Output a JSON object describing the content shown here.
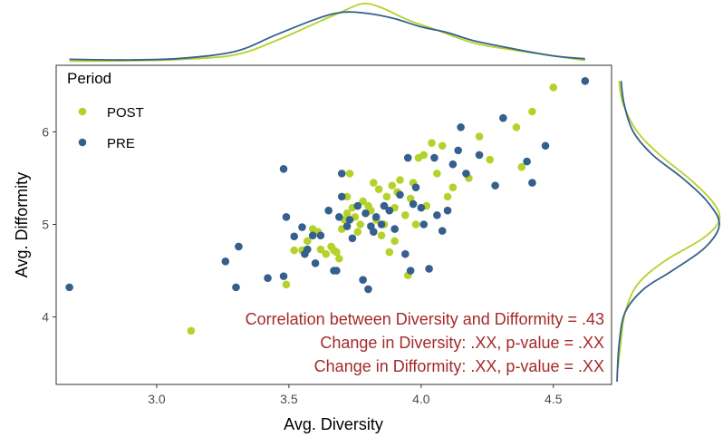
{
  "chart_data": {
    "type": "scatter",
    "xlabel": "Avg. Diversity",
    "ylabel": "Avg. Difformity",
    "xlim": [
      2.62,
      4.72
    ],
    "ylim": [
      3.27,
      6.72
    ],
    "x_ticks": [
      "3.0",
      "3.5",
      "4.0",
      "4.5"
    ],
    "x_tick_values": [
      3.0,
      3.5,
      4.0,
      4.5
    ],
    "y_ticks": [
      "4",
      "5",
      "6"
    ],
    "y_tick_values": [
      4,
      5,
      6
    ],
    "legend": {
      "title": "Period",
      "placement": "top-left",
      "entries": [
        {
          "label": "POST",
          "color": "#b5d22a"
        },
        {
          "label": "PRE",
          "color": "#355f8d"
        }
      ]
    },
    "annotations": [
      "Correlation between Diversity and Difformity = .43",
      "Change in Diversity: .XX, p-value = .XX",
      "Change in Difformity: .XX, p-value = .XX"
    ],
    "series": [
      {
        "name": "POST",
        "color": "#b5d22a",
        "points": [
          [
            3.13,
            3.85
          ],
          [
            3.49,
            4.35
          ],
          [
            3.52,
            4.72
          ],
          [
            3.55,
            4.72
          ],
          [
            3.57,
            4.82
          ],
          [
            3.59,
            4.95
          ],
          [
            3.61,
            4.92
          ],
          [
            3.62,
            4.73
          ],
          [
            3.64,
            4.68
          ],
          [
            3.66,
            4.76
          ],
          [
            3.67,
            4.72
          ],
          [
            3.68,
            4.7
          ],
          [
            3.69,
            4.63
          ],
          [
            3.7,
            4.95
          ],
          [
            3.71,
            5.05
          ],
          [
            3.72,
            5.12
          ],
          [
            3.72,
            5.3
          ],
          [
            3.73,
            5.55
          ],
          [
            3.74,
            5.18
          ],
          [
            3.75,
            5.08
          ],
          [
            3.76,
            4.92
          ],
          [
            3.77,
            5.0
          ],
          [
            3.78,
            5.25
          ],
          [
            3.79,
            5.12
          ],
          [
            3.8,
            5.2
          ],
          [
            3.81,
            5.15
          ],
          [
            3.82,
            5.45
          ],
          [
            3.83,
            5.05
          ],
          [
            3.84,
            5.38
          ],
          [
            3.85,
            4.88
          ],
          [
            3.86,
            5.0
          ],
          [
            3.87,
            5.3
          ],
          [
            3.88,
            4.7
          ],
          [
            3.89,
            5.42
          ],
          [
            3.9,
            4.82
          ],
          [
            3.9,
            5.18
          ],
          [
            3.91,
            5.35
          ],
          [
            3.92,
            5.48
          ],
          [
            3.94,
            5.1
          ],
          [
            3.95,
            4.45
          ],
          [
            3.96,
            5.28
          ],
          [
            3.97,
            5.45
          ],
          [
            3.98,
            5.0
          ],
          [
            3.99,
            5.72
          ],
          [
            4.01,
            5.75
          ],
          [
            4.02,
            5.2
          ],
          [
            4.04,
            5.88
          ],
          [
            4.06,
            5.55
          ],
          [
            4.08,
            5.85
          ],
          [
            4.1,
            5.3
          ],
          [
            4.12,
            5.4
          ],
          [
            4.18,
            5.5
          ],
          [
            4.22,
            5.95
          ],
          [
            4.26,
            5.7
          ],
          [
            4.36,
            6.05
          ],
          [
            4.38,
            5.62
          ],
          [
            4.42,
            6.22
          ],
          [
            4.5,
            6.48
          ]
        ]
      },
      {
        "name": "PRE",
        "color": "#355f8d",
        "points": [
          [
            2.67,
            4.32
          ],
          [
            3.26,
            4.6
          ],
          [
            3.3,
            4.32
          ],
          [
            3.31,
            4.76
          ],
          [
            3.42,
            4.42
          ],
          [
            3.48,
            4.44
          ],
          [
            3.48,
            5.6
          ],
          [
            3.49,
            5.08
          ],
          [
            3.52,
            4.87
          ],
          [
            3.55,
            4.97
          ],
          [
            3.56,
            4.68
          ],
          [
            3.57,
            4.73
          ],
          [
            3.59,
            4.88
          ],
          [
            3.6,
            4.58
          ],
          [
            3.62,
            4.88
          ],
          [
            3.65,
            5.15
          ],
          [
            3.67,
            4.5
          ],
          [
            3.68,
            4.5
          ],
          [
            3.69,
            5.08
          ],
          [
            3.7,
            5.3
          ],
          [
            3.7,
            5.55
          ],
          [
            3.72,
            4.98
          ],
          [
            3.73,
            5.05
          ],
          [
            3.74,
            4.85
          ],
          [
            3.76,
            5.2
          ],
          [
            3.78,
            4.4
          ],
          [
            3.79,
            5.12
          ],
          [
            3.8,
            4.3
          ],
          [
            3.81,
            4.98
          ],
          [
            3.82,
            4.92
          ],
          [
            3.83,
            5.08
          ],
          [
            3.85,
            5.0
          ],
          [
            3.86,
            5.2
          ],
          [
            3.88,
            5.15
          ],
          [
            3.9,
            4.95
          ],
          [
            3.92,
            5.32
          ],
          [
            3.94,
            4.68
          ],
          [
            3.95,
            5.72
          ],
          [
            3.96,
            4.5
          ],
          [
            3.97,
            5.22
          ],
          [
            3.98,
            5.4
          ],
          [
            4.0,
            5.18
          ],
          [
            4.01,
            5.0
          ],
          [
            4.03,
            4.52
          ],
          [
            4.05,
            5.72
          ],
          [
            4.06,
            5.1
          ],
          [
            4.08,
            4.93
          ],
          [
            4.1,
            5.15
          ],
          [
            4.12,
            5.65
          ],
          [
            4.14,
            5.8
          ],
          [
            4.15,
            6.05
          ],
          [
            4.17,
            5.55
          ],
          [
            4.22,
            5.75
          ],
          [
            4.28,
            5.42
          ],
          [
            4.31,
            6.15
          ],
          [
            4.4,
            5.68
          ],
          [
            4.42,
            5.45
          ],
          [
            4.47,
            5.85
          ],
          [
            4.62,
            6.55
          ]
        ]
      }
    ],
    "marginal_density": {
      "top": {
        "axis": "x",
        "series": [
          {
            "name": "POST",
            "color": "#b5d22a",
            "points": [
              [
                2.67,
                0.01
              ],
              [
                2.9,
                0.015
              ],
              [
                3.1,
                0.04
              ],
              [
                3.3,
                0.12
              ],
              [
                3.45,
                0.36
              ],
              [
                3.6,
                0.66
              ],
              [
                3.7,
                0.86
              ],
              [
                3.78,
                1.0
              ],
              [
                3.85,
                0.93
              ],
              [
                3.95,
                0.72
              ],
              [
                4.05,
                0.56
              ],
              [
                4.2,
                0.32
              ],
              [
                4.35,
                0.2
              ],
              [
                4.5,
                0.1
              ],
              [
                4.62,
                0.02
              ]
            ]
          },
          {
            "name": "PRE",
            "color": "#355f8d",
            "points": [
              [
                2.67,
                0.04
              ],
              [
                2.9,
                0.03
              ],
              [
                3.1,
                0.06
              ],
              [
                3.3,
                0.18
              ],
              [
                3.45,
                0.46
              ],
              [
                3.6,
                0.73
              ],
              [
                3.7,
                0.85
              ],
              [
                3.8,
                0.83
              ],
              [
                3.9,
                0.74
              ],
              [
                4.0,
                0.6
              ],
              [
                4.1,
                0.5
              ],
              [
                4.2,
                0.36
              ],
              [
                4.35,
                0.22
              ],
              [
                4.5,
                0.1
              ],
              [
                4.62,
                0.05
              ]
            ]
          }
        ]
      },
      "right": {
        "axis": "y",
        "series": [
          {
            "name": "POST",
            "color": "#b5d22a",
            "points": [
              [
                6.55,
                0.02
              ],
              [
                6.3,
                0.06
              ],
              [
                6.0,
                0.2
              ],
              [
                5.75,
                0.42
              ],
              [
                5.5,
                0.7
              ],
              [
                5.25,
                0.93
              ],
              [
                5.05,
                1.0
              ],
              [
                4.85,
                0.84
              ],
              [
                4.6,
                0.46
              ],
              [
                4.35,
                0.2
              ],
              [
                4.05,
                0.08
              ],
              [
                3.75,
                0.04
              ],
              [
                3.45,
                0.01
              ]
            ]
          },
          {
            "name": "PRE",
            "color": "#355f8d",
            "points": [
              [
                6.55,
                0.04
              ],
              [
                6.3,
                0.07
              ],
              [
                6.0,
                0.16
              ],
              [
                5.75,
                0.35
              ],
              [
                5.5,
                0.64
              ],
              [
                5.25,
                0.88
              ],
              [
                5.0,
                1.0
              ],
              [
                4.75,
                0.86
              ],
              [
                4.5,
                0.54
              ],
              [
                4.3,
                0.26
              ],
              [
                4.05,
                0.08
              ],
              [
                3.7,
                0.02
              ],
              [
                3.3,
                0.0
              ]
            ]
          }
        ]
      }
    }
  }
}
